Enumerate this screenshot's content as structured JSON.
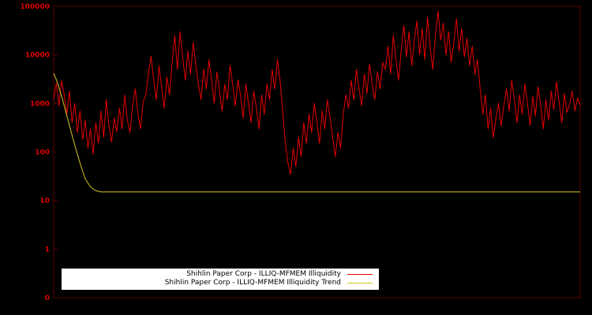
{
  "chart_data": {
    "type": "line",
    "title": "",
    "xlabel": "",
    "ylabel": "",
    "y_scale": "log",
    "ylim": [
      0.1,
      100000
    ],
    "y_tick_labels": [
      "100000",
      "10000",
      "1000",
      "100",
      "10",
      "1",
      "0"
    ],
    "y_tick_values": [
      100000,
      10000,
      1000,
      100,
      10,
      1,
      0.1
    ],
    "background_color": "#000000",
    "frame_color": "#5e0000",
    "axis_label_color": "#dd0000",
    "grid": false,
    "legend_position": "bottom-center-inside",
    "legend_background": "#ffffff",
    "series": [
      {
        "id": "illiquidity",
        "name": "Shihlin Paper Corp - ILLIQ-MFMEM Illiquidity",
        "color": "#e60000",
        "values": [
          1200,
          2600,
          900,
          3000,
          1500,
          600,
          1800,
          400,
          1000,
          250,
          700,
          180,
          450,
          120,
          300,
          90,
          400,
          150,
          700,
          200,
          1200,
          350,
          160,
          500,
          260,
          800,
          300,
          1500,
          450,
          250,
          900,
          2000,
          600,
          300,
          1100,
          1500,
          4000,
          9500,
          3000,
          1200,
          6000,
          2200,
          800,
          3500,
          1500,
          7000,
          25000,
          5000,
          30000,
          9000,
          3000,
          12000,
          4000,
          18000,
          6000,
          2500,
          1200,
          5000,
          2000,
          8000,
          3000,
          1000,
          4500,
          1800,
          700,
          2500,
          1200,
          6000,
          2500,
          900,
          3000,
          1500,
          500,
          2500,
          1000,
          400,
          1800,
          800,
          300,
          1500,
          600,
          2500,
          1200,
          5000,
          2000,
          8000,
          3000,
          700,
          150,
          60,
          35,
          120,
          50,
          200,
          80,
          400,
          150,
          600,
          250,
          1000,
          400,
          150,
          700,
          300,
          1200,
          500,
          200,
          80,
          250,
          120,
          600,
          1500,
          800,
          3000,
          1200,
          5000,
          2000,
          900,
          4000,
          1600,
          6500,
          2500,
          1200,
          4500,
          2000,
          7000,
          5000,
          15000,
          4000,
          25000,
          8000,
          3000,
          12000,
          40000,
          9000,
          30000,
          6000,
          20000,
          50000,
          10000,
          35000,
          8000,
          60000,
          15000,
          5000,
          25000,
          80000,
          20000,
          45000,
          10000,
          30000,
          7000,
          18000,
          55000,
          12000,
          35000,
          9000,
          22000,
          6000,
          15000,
          4000,
          8000,
          2000,
          600,
          1500,
          300,
          800,
          200,
          500,
          1000,
          350,
          900,
          2000,
          700,
          3000,
          1200,
          400,
          1500,
          600,
          2500,
          1000,
          350,
          1400,
          550,
          2200,
          900,
          300,
          1200,
          450,
          1800,
          750,
          2800,
          1100,
          400,
          1600,
          650,
          1000,
          1800,
          700,
          1300,
          900
        ]
      },
      {
        "id": "illiquidity-trend",
        "name": "Shihlin Paper Corp - ILLIQ-MFMEM Illiquidity Trend",
        "color": "#d5c520",
        "x": [
          0,
          0.004,
          0.008,
          0.012,
          0.016,
          0.02,
          0.025,
          0.03,
          0.035,
          0.04,
          0.045,
          0.05,
          0.055,
          0.06,
          0.07,
          0.08,
          0.09,
          1.0
        ],
        "values": [
          4200,
          3300,
          2500,
          1800,
          1300,
          900,
          560,
          350,
          220,
          140,
          90,
          60,
          40,
          28,
          19,
          16,
          15,
          15
        ]
      }
    ]
  }
}
